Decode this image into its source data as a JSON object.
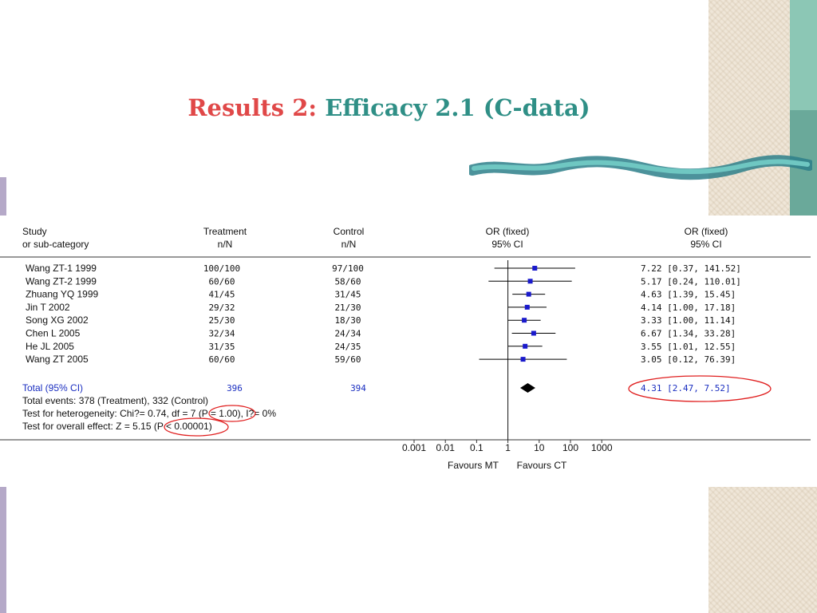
{
  "slide": {
    "title_prefix": "Results 2:",
    "title_main": "Efficacy 2.1 (C-data)"
  },
  "table_header": {
    "study_line1": "Study",
    "study_line2": "or sub-category",
    "treatment_line1": "Treatment",
    "treatment_line2": "n/N",
    "control_line1": "Control",
    "control_line2": "n/N",
    "plot_line1": "OR (fixed)",
    "plot_line2": "95% CI",
    "or_line1": "OR (fixed)",
    "or_line2": "95% CI"
  },
  "summary": {
    "total_label": "Total (95% CI)",
    "total_treatment": "396",
    "total_control": "394",
    "total_or_text": "4.31 [2.47, 7.52]",
    "events_text": "Total events: 378 (Treatment), 332 (Control)",
    "heterogeneity_prefix": "Test for heterogeneity: Chi?= 0.74, df = 7 ",
    "heterogeneity_p": "(P = 1.00)",
    "heterogeneity_suffix": ", I?= 0%",
    "overall_prefix": "Test for overall effect: Z = 5.15 ",
    "overall_p": "(P < 0.00001)"
  },
  "axis": {
    "favours_left": "Favours MT",
    "favours_right": "Favours CT"
  },
  "colors": {
    "study_square": "#1a1acc",
    "summary_text": "#1a2ec0",
    "highlight_ellipse": "#e02020",
    "title_prefix": "#e04848",
    "title_main": "#2f8f86"
  },
  "chart_data": {
    "type": "forest",
    "scale": "log",
    "xlim": [
      0.001,
      1000
    ],
    "x_ticks": [
      0.001,
      0.01,
      0.1,
      1,
      10,
      100,
      1000
    ],
    "x_tick_labels": [
      "0.001",
      "0.01",
      "0.1",
      "1",
      "10",
      "100",
      "1000"
    ],
    "studies": [
      {
        "name": "Wang ZT-1 1999",
        "treatment": "100/100",
        "control": "97/100",
        "or": 7.22,
        "lo": 0.37,
        "hi": 141.52,
        "or_text": "7.22 [0.37, 141.52]"
      },
      {
        "name": "Wang ZT-2 1999",
        "treatment": "60/60",
        "control": "58/60",
        "or": 5.17,
        "lo": 0.24,
        "hi": 110.01,
        "or_text": "5.17 [0.24, 110.01]"
      },
      {
        "name": "Zhuang YQ 1999",
        "treatment": "41/45",
        "control": "31/45",
        "or": 4.63,
        "lo": 1.39,
        "hi": 15.45,
        "or_text": "4.63 [1.39, 15.45]"
      },
      {
        "name": "Jin T 2002",
        "treatment": "29/32",
        "control": "21/30",
        "or": 4.14,
        "lo": 1.0,
        "hi": 17.18,
        "or_text": "4.14 [1.00, 17.18]"
      },
      {
        "name": "Song XG 2002",
        "treatment": "25/30",
        "control": "18/30",
        "or": 3.33,
        "lo": 1.0,
        "hi": 11.14,
        "or_text": "3.33 [1.00, 11.14]"
      },
      {
        "name": "Chen L 2005",
        "treatment": "32/34",
        "control": "24/34",
        "or": 6.67,
        "lo": 1.34,
        "hi": 33.28,
        "or_text": "6.67 [1.34, 33.28]"
      },
      {
        "name": "He JL 2005",
        "treatment": "31/35",
        "control": "24/35",
        "or": 3.55,
        "lo": 1.01,
        "hi": 12.55,
        "or_text": "3.55 [1.01, 12.55]"
      },
      {
        "name": "Wang ZT 2005",
        "treatment": "60/60",
        "control": "59/60",
        "or": 3.05,
        "lo": 0.12,
        "hi": 76.39,
        "or_text": "3.05 [0.12, 76.39]"
      }
    ],
    "total": {
      "or": 4.31,
      "lo": 2.47,
      "hi": 7.52
    }
  }
}
